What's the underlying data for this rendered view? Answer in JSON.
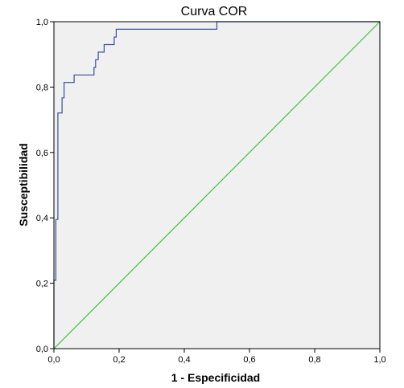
{
  "chart_data": {
    "type": "line",
    "title": "Curva COR",
    "xlabel": "1 - Especificidad",
    "ylabel": "Susceptibilidad",
    "xlim": [
      0,
      1
    ],
    "ylim": [
      0,
      1
    ],
    "x_ticks": [
      "0,0",
      "0,2",
      "0,4",
      "0,6",
      "0,8",
      "1,0"
    ],
    "y_ticks": [
      "0,0",
      "0,2",
      "0,4",
      "0,6",
      "0,8",
      "1,0"
    ],
    "grid": false,
    "legend": "none",
    "series": [
      {
        "kind": "roc-curve",
        "color": "#3b4ea0",
        "x": [
          0.0,
          0.0,
          0.006,
          0.006,
          0.012,
          0.012,
          0.025,
          0.025,
          0.031,
          0.031,
          0.037,
          0.037,
          0.062,
          0.062,
          0.123,
          0.123,
          0.128,
          0.128,
          0.136,
          0.136,
          0.154,
          0.154,
          0.185,
          0.185,
          0.191,
          0.191,
          0.5,
          0.5,
          1.0
        ],
        "y": [
          0.0,
          0.209,
          0.209,
          0.395,
          0.395,
          0.721,
          0.721,
          0.767,
          0.767,
          0.814,
          0.814,
          0.814,
          0.814,
          0.837,
          0.837,
          0.86,
          0.86,
          0.884,
          0.884,
          0.907,
          0.907,
          0.93,
          0.93,
          0.953,
          0.953,
          0.977,
          0.977,
          1.0,
          1.0
        ]
      },
      {
        "kind": "reference-line",
        "color": "#3fbf3f",
        "x": [
          0,
          1
        ],
        "y": [
          0,
          1
        ]
      }
    ],
    "plot_background": "#f0f0f0"
  }
}
